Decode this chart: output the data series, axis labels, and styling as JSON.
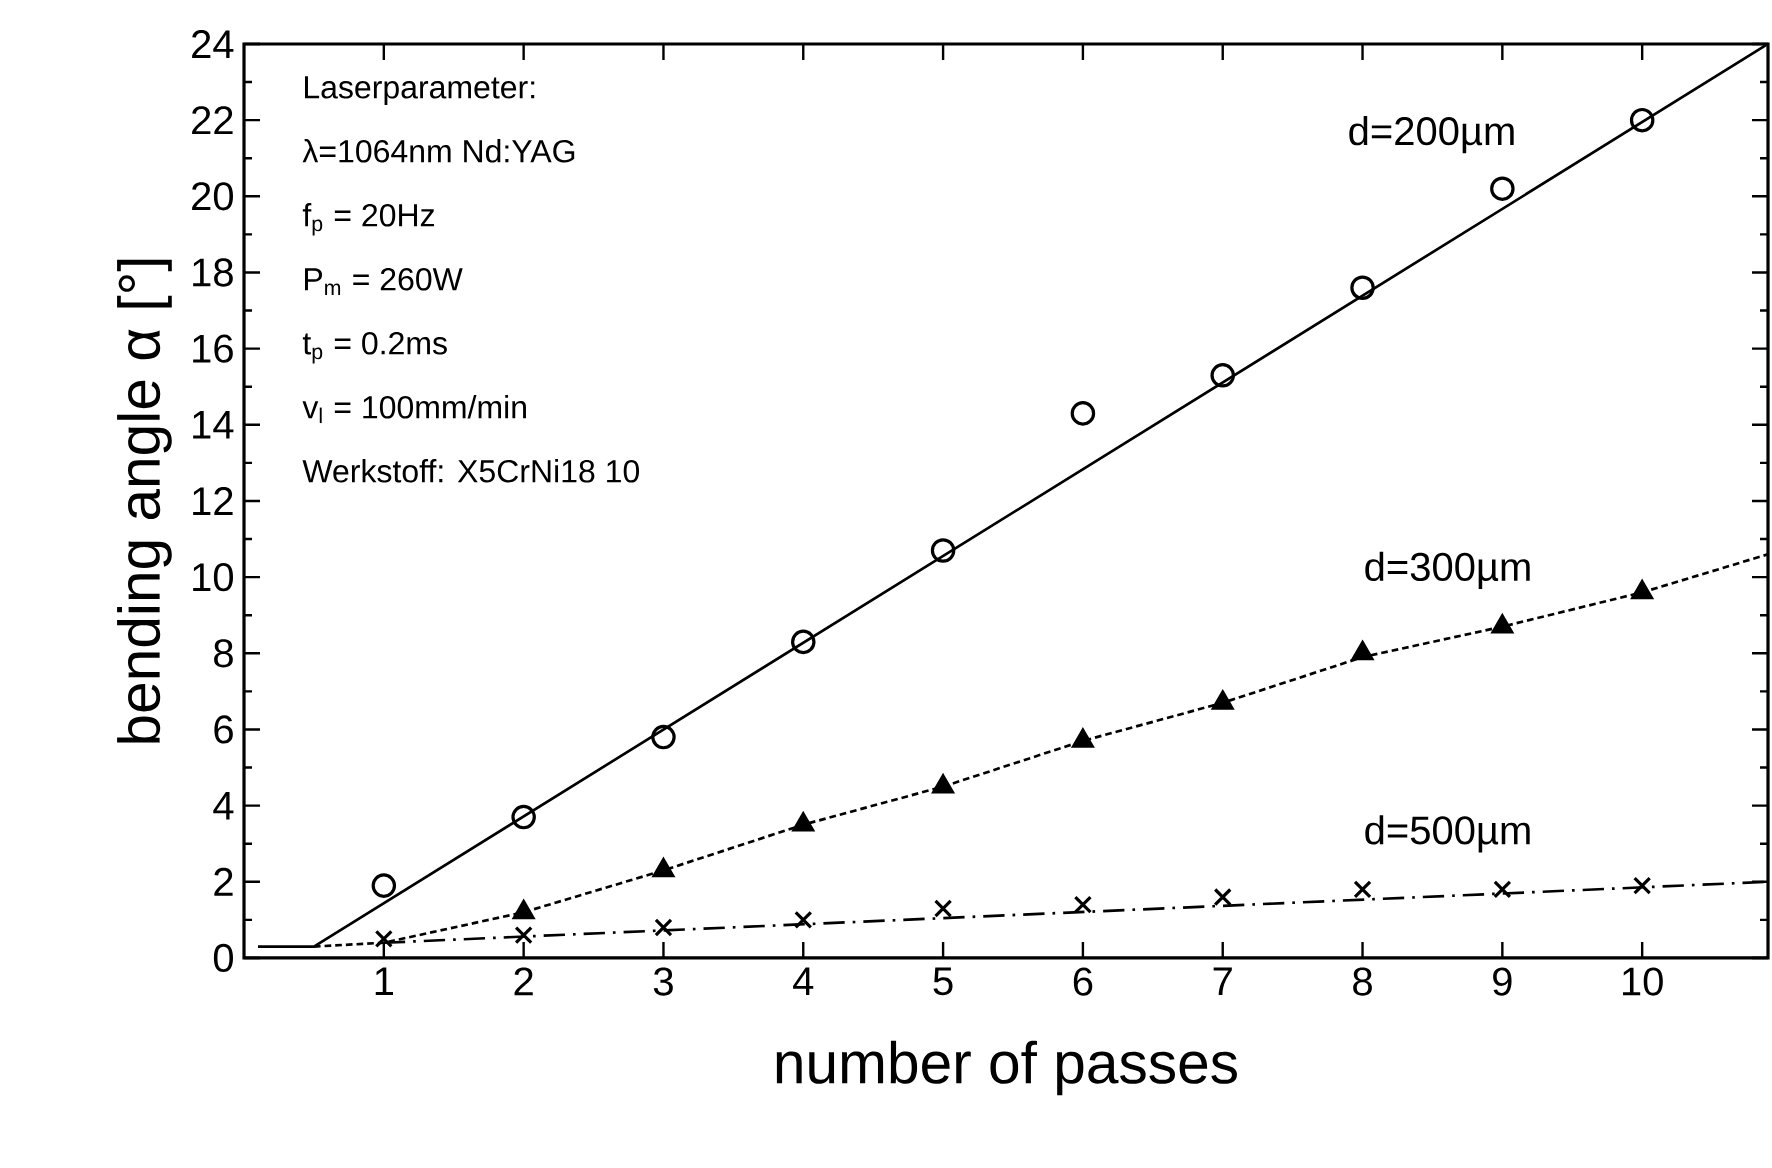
{
  "chart_data": {
    "type": "scatter",
    "xlabel": "number of passes",
    "ylabel": "bending angle  α [°]",
    "xlim": [
      0,
      10.9
    ],
    "ylim": [
      0,
      24
    ],
    "xticks": [
      1,
      2,
      3,
      4,
      5,
      6,
      7,
      8,
      9,
      10
    ],
    "yticks": [
      0,
      2,
      4,
      6,
      8,
      10,
      12,
      14,
      16,
      18,
      20,
      22,
      24
    ],
    "grid": false,
    "legend": false,
    "series": [
      {
        "marker": "circle",
        "color": "#000000",
        "x": [
          1,
          2,
          3,
          4,
          5,
          6,
          7,
          8,
          9,
          10
        ],
        "values": [
          1.9,
          3.7,
          5.8,
          8.3,
          10.7,
          14.3,
          15.3,
          17.6,
          20.2,
          22.0
        ]
      },
      {
        "type": "line",
        "name": "d=200µm",
        "marker": "none",
        "line_style": "solid",
        "color": "#000000",
        "x": [
          0.1,
          0.5,
          10.9
        ],
        "values": [
          0.3,
          0.3,
          24
        ]
      },
      {
        "marker": "triangle",
        "color": "#000000",
        "x": [
          2,
          3,
          4,
          5,
          6,
          7,
          8,
          9,
          10
        ],
        "values": [
          1.2,
          2.3,
          3.5,
          4.5,
          5.7,
          6.7,
          8.0,
          8.7,
          9.6
        ]
      },
      {
        "type": "line",
        "name": "d=300µm",
        "marker": "none",
        "line_style": "dotted",
        "color": "#000000",
        "x": [
          0.5,
          1,
          2,
          3,
          4,
          5,
          6,
          7,
          8,
          9,
          10,
          10.9
        ],
        "values": [
          0.3,
          0.4,
          1.2,
          2.3,
          3.5,
          4.5,
          5.7,
          6.7,
          7.9,
          8.7,
          9.6,
          10.6
        ]
      },
      {
        "marker": "cross",
        "color": "#000000",
        "x": [
          1,
          2,
          3,
          4,
          5,
          6,
          7,
          8,
          9,
          10
        ],
        "values": [
          0.5,
          0.6,
          0.8,
          1.0,
          1.3,
          1.4,
          1.6,
          1.8,
          1.8,
          1.9
        ]
      },
      {
        "type": "line",
        "name": "d=500µm",
        "marker": "none",
        "line_style": "dashed",
        "color": "#000000",
        "x": [
          1,
          10.9
        ],
        "values": [
          0.4,
          2.0
        ]
      }
    ],
    "annotations": [
      "Laserparameter:",
      "λ=1064nm Nd:YAG",
      "f$_{p}$ = 20Hz",
      "P$_{m}$ = 260W",
      "t$_{p}$ = 0.2ms",
      "v$_{l}$ = 100mm/min",
      "Werkstoff: X5CrNi18 10"
    ]
  }
}
